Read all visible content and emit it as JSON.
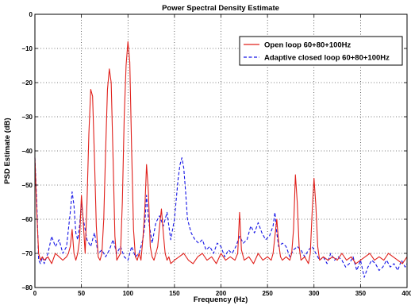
{
  "chart_data": {
    "type": "line",
    "title": "Power Spectral Density Estimate",
    "xlabel": "Frequency (Hz)",
    "ylabel": "PSD Estimate (dB)",
    "xlim": [
      0,
      400
    ],
    "ylim": [
      -80,
      0
    ],
    "xticks": [
      0,
      50,
      100,
      150,
      200,
      250,
      300,
      350,
      400
    ],
    "xtick_labels": [
      "0",
      "50",
      "100",
      "150",
      "200",
      "250",
      "300",
      "350",
      "400"
    ],
    "yticks": [
      -80,
      -70,
      -60,
      -50,
      -40,
      -30,
      -20,
      -10,
      0
    ],
    "ytick_labels": [
      "−80",
      "−70",
      "−60",
      "−50",
      "−40",
      "−30",
      "−20",
      "−10",
      "0"
    ],
    "grid": true,
    "legend_position": "top-right",
    "series": [
      {
        "name": "Open loop 60+80+100Hz",
        "color": "#e0201b",
        "style": "solid",
        "x": [
          0,
          2,
          4,
          6,
          8,
          10,
          14,
          18,
          22,
          26,
          30,
          34,
          36,
          38,
          40,
          42,
          44,
          46,
          48,
          50,
          52,
          54,
          56,
          58,
          60,
          62,
          64,
          66,
          68,
          70,
          72,
          74,
          76,
          78,
          80,
          82,
          84,
          86,
          88,
          90,
          92,
          94,
          96,
          98,
          100,
          102,
          104,
          106,
          108,
          110,
          112,
          114,
          116,
          118,
          120,
          122,
          124,
          126,
          128,
          130,
          132,
          134,
          136,
          138,
          140,
          142,
          144,
          146,
          150,
          155,
          160,
          165,
          170,
          175,
          180,
          185,
          190,
          195,
          200,
          205,
          210,
          215,
          218,
          220,
          222,
          225,
          230,
          235,
          240,
          245,
          250,
          254,
          256,
          258,
          260,
          262,
          264,
          266,
          270,
          274,
          276,
          278,
          280,
          282,
          284,
          286,
          290,
          294,
          296,
          298,
          300,
          302,
          304,
          306,
          310,
          315,
          320,
          325,
          330,
          335,
          340,
          345,
          350,
          355,
          360,
          365,
          370,
          375,
          380,
          385,
          390,
          395,
          400
        ],
        "y": [
          -42,
          -58,
          -70,
          -72,
          -71,
          -72,
          -71,
          -73,
          -70,
          -71,
          -72,
          -71,
          -70,
          -68,
          -63,
          -70,
          -72,
          -70,
          -66,
          -53,
          -61,
          -70,
          -55,
          -35,
          -22,
          -24,
          -42,
          -62,
          -71,
          -72,
          -70,
          -60,
          -40,
          -22,
          -16,
          -20,
          -42,
          -65,
          -72,
          -71,
          -70,
          -55,
          -30,
          -15,
          -8,
          -14,
          -40,
          -63,
          -71,
          -72,
          -70,
          -72,
          -66,
          -58,
          -44,
          -52,
          -68,
          -71,
          -72,
          -70,
          -68,
          -62,
          -57,
          -64,
          -70,
          -72,
          -71,
          -73,
          -72,
          -71,
          -70,
          -72,
          -73,
          -71,
          -70,
          -72,
          -71,
          -73,
          -70,
          -72,
          -71,
          -72,
          -70,
          -58,
          -69,
          -72,
          -71,
          -73,
          -70,
          -72,
          -71,
          -72,
          -70,
          -65,
          -60,
          -67,
          -71,
          -72,
          -71,
          -72,
          -70,
          -63,
          -47,
          -55,
          -68,
          -72,
          -71,
          -73,
          -70,
          -58,
          -48,
          -56,
          -68,
          -72,
          -71,
          -72,
          -71,
          -72,
          -70,
          -72,
          -71,
          -73,
          -72,
          -71,
          -70,
          -72,
          -71,
          -72,
          -70,
          -71,
          -72,
          -73,
          -71
        ]
      },
      {
        "name": "Adaptive closed loop 60+80+100Hz",
        "color": "#1414e6",
        "style": "dashed",
        "x": [
          0,
          2,
          4,
          6,
          8,
          10,
          14,
          18,
          22,
          26,
          30,
          34,
          38,
          40,
          42,
          44,
          46,
          48,
          50,
          52,
          56,
          60,
          64,
          68,
          72,
          76,
          80,
          84,
          88,
          92,
          96,
          100,
          104,
          108,
          112,
          116,
          118,
          120,
          122,
          126,
          130,
          134,
          138,
          140,
          142,
          146,
          150,
          154,
          156,
          158,
          160,
          162,
          164,
          168,
          172,
          176,
          180,
          184,
          188,
          192,
          196,
          200,
          204,
          208,
          212,
          216,
          220,
          224,
          228,
          232,
          236,
          240,
          244,
          248,
          252,
          256,
          258,
          260,
          262,
          266,
          270,
          274,
          278,
          282,
          286,
          290,
          294,
          298,
          302,
          306,
          310,
          314,
          318,
          322,
          326,
          330,
          334,
          338,
          342,
          346,
          350,
          354,
          358,
          362,
          366,
          370,
          374,
          378,
          382,
          386,
          390,
          394,
          398,
          400
        ],
        "y": [
          -42,
          -55,
          -72,
          -73,
          -71,
          -73,
          -70,
          -65,
          -68,
          -66,
          -70,
          -68,
          -58,
          -52,
          -56,
          -64,
          -66,
          -62,
          -55,
          -60,
          -66,
          -68,
          -64,
          -70,
          -69,
          -71,
          -69,
          -66,
          -70,
          -68,
          -71,
          -72,
          -68,
          -71,
          -70,
          -66,
          -62,
          -53,
          -60,
          -67,
          -61,
          -59,
          -62,
          -60,
          -58,
          -66,
          -60,
          -48,
          -44,
          -42,
          -45,
          -52,
          -60,
          -64,
          -66,
          -67,
          -66,
          -69,
          -68,
          -70,
          -67,
          -68,
          -71,
          -69,
          -70,
          -68,
          -65,
          -67,
          -66,
          -62,
          -64,
          -61,
          -64,
          -66,
          -65,
          -62,
          -58,
          -64,
          -68,
          -67,
          -68,
          -71,
          -69,
          -68,
          -69,
          -71,
          -69,
          -68,
          -70,
          -72,
          -71,
          -73,
          -70,
          -72,
          -71,
          -72,
          -74,
          -73,
          -71,
          -75,
          -72,
          -77,
          -74,
          -72,
          -73,
          -75,
          -74,
          -72,
          -74,
          -73,
          -75,
          -72,
          -74,
          -73
        ]
      }
    ]
  }
}
